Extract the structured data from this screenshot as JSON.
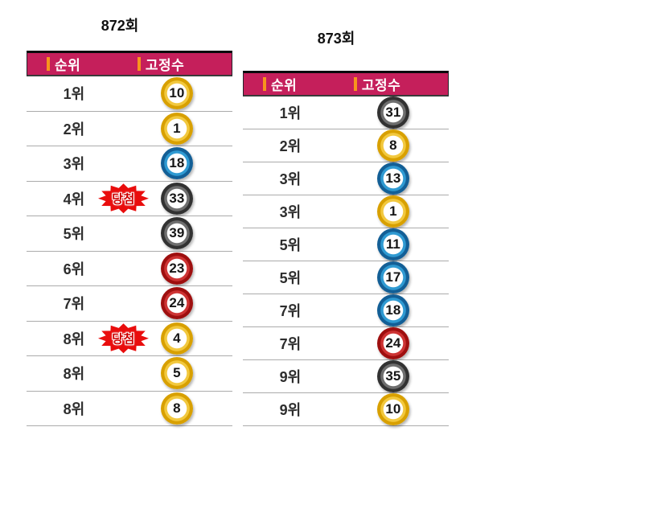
{
  "tables": [
    {
      "title": "872회",
      "columns": [
        "순위",
        "고정수"
      ],
      "rows": [
        {
          "rank": "1위",
          "number": 10
        },
        {
          "rank": "2위",
          "number": 1
        },
        {
          "rank": "3위",
          "number": 18
        },
        {
          "rank": "4위",
          "number": 33,
          "badge": "당첨"
        },
        {
          "rank": "5위",
          "number": 39
        },
        {
          "rank": "6위",
          "number": 23
        },
        {
          "rank": "7위",
          "number": 24
        },
        {
          "rank": "8위",
          "number": 4,
          "badge": "당첨"
        },
        {
          "rank": "8위",
          "number": 5
        },
        {
          "rank": "8위",
          "number": 8
        }
      ]
    },
    {
      "title": "873회",
      "columns": [
        "순위",
        "고정수"
      ],
      "rows": [
        {
          "rank": "1위",
          "number": 31
        },
        {
          "rank": "2위",
          "number": 8
        },
        {
          "rank": "3위",
          "number": 13
        },
        {
          "rank": "3위",
          "number": 1
        },
        {
          "rank": "5위",
          "number": 11
        },
        {
          "rank": "5위",
          "number": 17
        },
        {
          "rank": "7위",
          "number": 18
        },
        {
          "rank": "7위",
          "number": 24
        },
        {
          "rank": "9위",
          "number": 35
        },
        {
          "rank": "9위",
          "number": 10
        }
      ]
    }
  ],
  "colors": {
    "header_bg": "#c51f5b",
    "header_text": "#ffffff",
    "accent_bar": "#f7941d",
    "badge_bg": "#e90d0d",
    "badge_text": "#cc0000",
    "row_divider": "#ababab",
    "balls": {
      "yellow": {
        "inner": "#f2c83e",
        "outer": "#d8a000"
      },
      "blue": {
        "inner": "#2f9ad2",
        "outer": "#135f96"
      },
      "red": {
        "inner": "#cd3333",
        "outer": "#9e0f0f"
      },
      "gray": {
        "inner": "#6e6e6e",
        "outer": "#323232"
      },
      "green": {
        "inner": "#9ccc3c",
        "outer": "#5c8a1e"
      }
    }
  }
}
